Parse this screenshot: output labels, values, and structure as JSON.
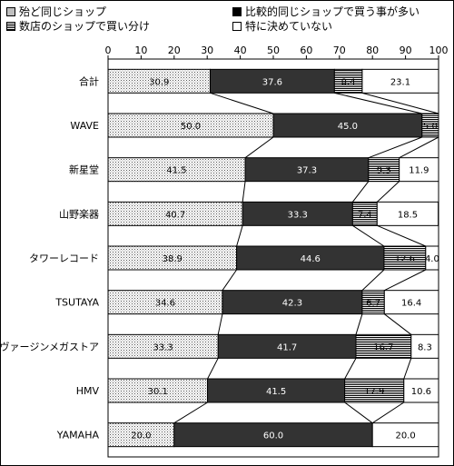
{
  "chart_data": {
    "type": "bar",
    "stacked": true,
    "orientation": "horizontal",
    "title": "",
    "xlabel": "",
    "ylabel": "",
    "xlim": [
      0,
      100
    ],
    "xticks": [
      0,
      10,
      20,
      30,
      40,
      50,
      60,
      70,
      80,
      90,
      100
    ],
    "grid": false,
    "legend_placement": "top",
    "categories": [
      "合計",
      "WAVE",
      "新星堂",
      "山野楽器",
      "タワーレコード",
      "TSUTAYA",
      "ヴァージンメガストア",
      "HMV",
      "YAMAHA"
    ],
    "series": [
      {
        "name": "殆ど同じショップ",
        "pattern": "dots",
        "color": "#ffffff",
        "values": [
          30.9,
          50.0,
          41.5,
          40.7,
          38.9,
          34.6,
          33.3,
          30.1,
          20.0
        ]
      },
      {
        "name": "比較的同じショップで買う事が多い",
        "pattern": "solid",
        "color": "#333333",
        "values": [
          37.6,
          45.0,
          37.3,
          33.3,
          44.6,
          42.3,
          41.7,
          41.5,
          60.0
        ]
      },
      {
        "name": "数店のショップで買い分け",
        "pattern": "hlines",
        "color": "#ffffff",
        "values": [
          8.4,
          5.0,
          9.3,
          7.4,
          12.6,
          6.7,
          16.7,
          17.9,
          0
        ]
      },
      {
        "name": "特に決めていない",
        "pattern": "none",
        "color": "#ffffff",
        "values": [
          23.1,
          0,
          11.9,
          18.5,
          4.0,
          16.4,
          8.3,
          10.6,
          20.0
        ]
      }
    ],
    "data_labels": [
      [
        "30.9",
        "37.6",
        "8.4",
        "23.1"
      ],
      [
        "50.0",
        "45.0",
        "5.0",
        ""
      ],
      [
        "41.5",
        "37.3",
        "9.3",
        "11.9"
      ],
      [
        "40.7",
        "33.3",
        "7.4",
        "18.5"
      ],
      [
        "38.9",
        "44.6",
        "12.6",
        "4.0"
      ],
      [
        "34.6",
        "42.3",
        "6.7",
        "16.4"
      ],
      [
        "33.3",
        "41.7",
        "16.7",
        "8.3"
      ],
      [
        "30.1",
        "41.5",
        "17.9",
        "10.6"
      ],
      [
        "20.0",
        "60.0",
        "",
        "20.0"
      ]
    ]
  },
  "legend": {
    "items": [
      {
        "label": "殆ど同じショップ",
        "pattern": "dots"
      },
      {
        "label": "比較的同じショップで買う事が多い",
        "pattern": "black"
      },
      {
        "label": "数店のショップで買い分け",
        "pattern": "lines"
      },
      {
        "label": "特に決めていない",
        "pattern": "white"
      }
    ]
  }
}
